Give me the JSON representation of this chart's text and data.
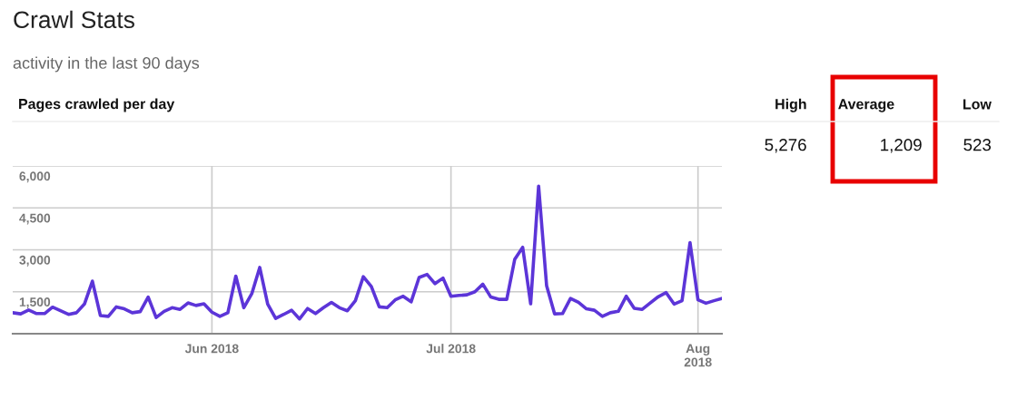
{
  "chart_data": [
    {
      "type": "line",
      "title": "Crawl Stats",
      "subtitle": "activity in the last 90 days",
      "annotations": [
        "Pages crawled per day"
      ],
      "x": [
        "2018-05-07",
        "2018-05-08",
        "2018-05-09",
        "2018-05-10",
        "2018-05-11",
        "2018-05-12",
        "2018-05-13",
        "2018-05-14",
        "2018-05-15",
        "2018-05-16",
        "2018-05-17",
        "2018-05-18",
        "2018-05-19",
        "2018-05-20",
        "2018-05-21",
        "2018-05-22",
        "2018-05-23",
        "2018-05-24",
        "2018-05-25",
        "2018-05-26",
        "2018-05-27",
        "2018-05-28",
        "2018-05-29",
        "2018-05-30",
        "2018-05-31",
        "2018-06-01",
        "2018-06-02",
        "2018-06-03",
        "2018-06-04",
        "2018-06-05",
        "2018-06-06",
        "2018-06-07",
        "2018-06-08",
        "2018-06-09",
        "2018-06-10",
        "2018-06-11",
        "2018-06-12",
        "2018-06-13",
        "2018-06-14",
        "2018-06-15",
        "2018-06-16",
        "2018-06-17",
        "2018-06-18",
        "2018-06-19",
        "2018-06-20",
        "2018-06-21",
        "2018-06-22",
        "2018-06-23",
        "2018-06-24",
        "2018-06-25",
        "2018-06-26",
        "2018-06-27",
        "2018-06-28",
        "2018-06-29",
        "2018-06-30",
        "2018-07-01",
        "2018-07-02",
        "2018-07-03",
        "2018-07-04",
        "2018-07-05",
        "2018-07-06",
        "2018-07-07",
        "2018-07-08",
        "2018-07-09",
        "2018-07-10",
        "2018-07-11",
        "2018-07-12",
        "2018-07-13",
        "2018-07-14",
        "2018-07-15",
        "2018-07-16",
        "2018-07-17",
        "2018-07-18",
        "2018-07-19",
        "2018-07-20",
        "2018-07-21",
        "2018-07-22",
        "2018-07-23",
        "2018-07-24",
        "2018-07-25",
        "2018-07-26",
        "2018-07-27",
        "2018-07-28",
        "2018-07-29",
        "2018-07-30",
        "2018-07-31",
        "2018-08-01",
        "2018-08-02",
        "2018-08-03",
        "2018-08-04"
      ],
      "series": [
        {
          "color": "#5c35d8",
          "values": [
            750,
            710,
            850,
            720,
            720,
            950,
            820,
            690,
            750,
            1060,
            1880,
            650,
            620,
            960,
            890,
            750,
            790,
            1310,
            580,
            800,
            930,
            870,
            1100,
            1010,
            1070,
            770,
            620,
            750,
            2060,
            930,
            1430,
            2370,
            1060,
            550,
            690,
            840,
            530,
            900,
            720,
            930,
            1120,
            930,
            820,
            1180,
            2040,
            1690,
            960,
            930,
            1210,
            1340,
            1140,
            2010,
            2120,
            1790,
            1990,
            1340,
            1370,
            1390,
            1500,
            1770,
            1310,
            1230,
            1230,
            2660,
            3090,
            1070,
            5280,
            1720,
            710,
            720,
            1260,
            1120,
            890,
            840,
            620,
            750,
            800,
            1340,
            910,
            870,
            1100,
            1320,
            1470,
            1060,
            1180,
            3260,
            1210,
            1090,
            1180,
            1260
          ]
        }
      ],
      "xlim": [
        "2018-05-07",
        "2018-08-04"
      ],
      "xticks": [
        {
          "value": "2018-06-01",
          "label": "Jun 2018"
        },
        {
          "value": "2018-07-01",
          "label": "Jul 2018"
        },
        {
          "value": "2018-08-01",
          "label": "Aug\n2018"
        }
      ],
      "ylim": [
        0,
        6000
      ],
      "yticks": [
        {
          "value": 0,
          "label": null
        },
        {
          "value": 1500,
          "label": "1,500"
        },
        {
          "value": 3000,
          "label": "3,000"
        },
        {
          "value": 4500,
          "label": "4,500"
        },
        {
          "value": 6000,
          "label": "6,000"
        }
      ],
      "grid": true,
      "line_style": "solid",
      "marker": "none"
    },
    {
      "type": "other",
      "categories": [
        "High",
        "Average",
        "Low"
      ],
      "annotations": [
        "5,276",
        "1,209",
        "523"
      ]
    }
  ]
}
